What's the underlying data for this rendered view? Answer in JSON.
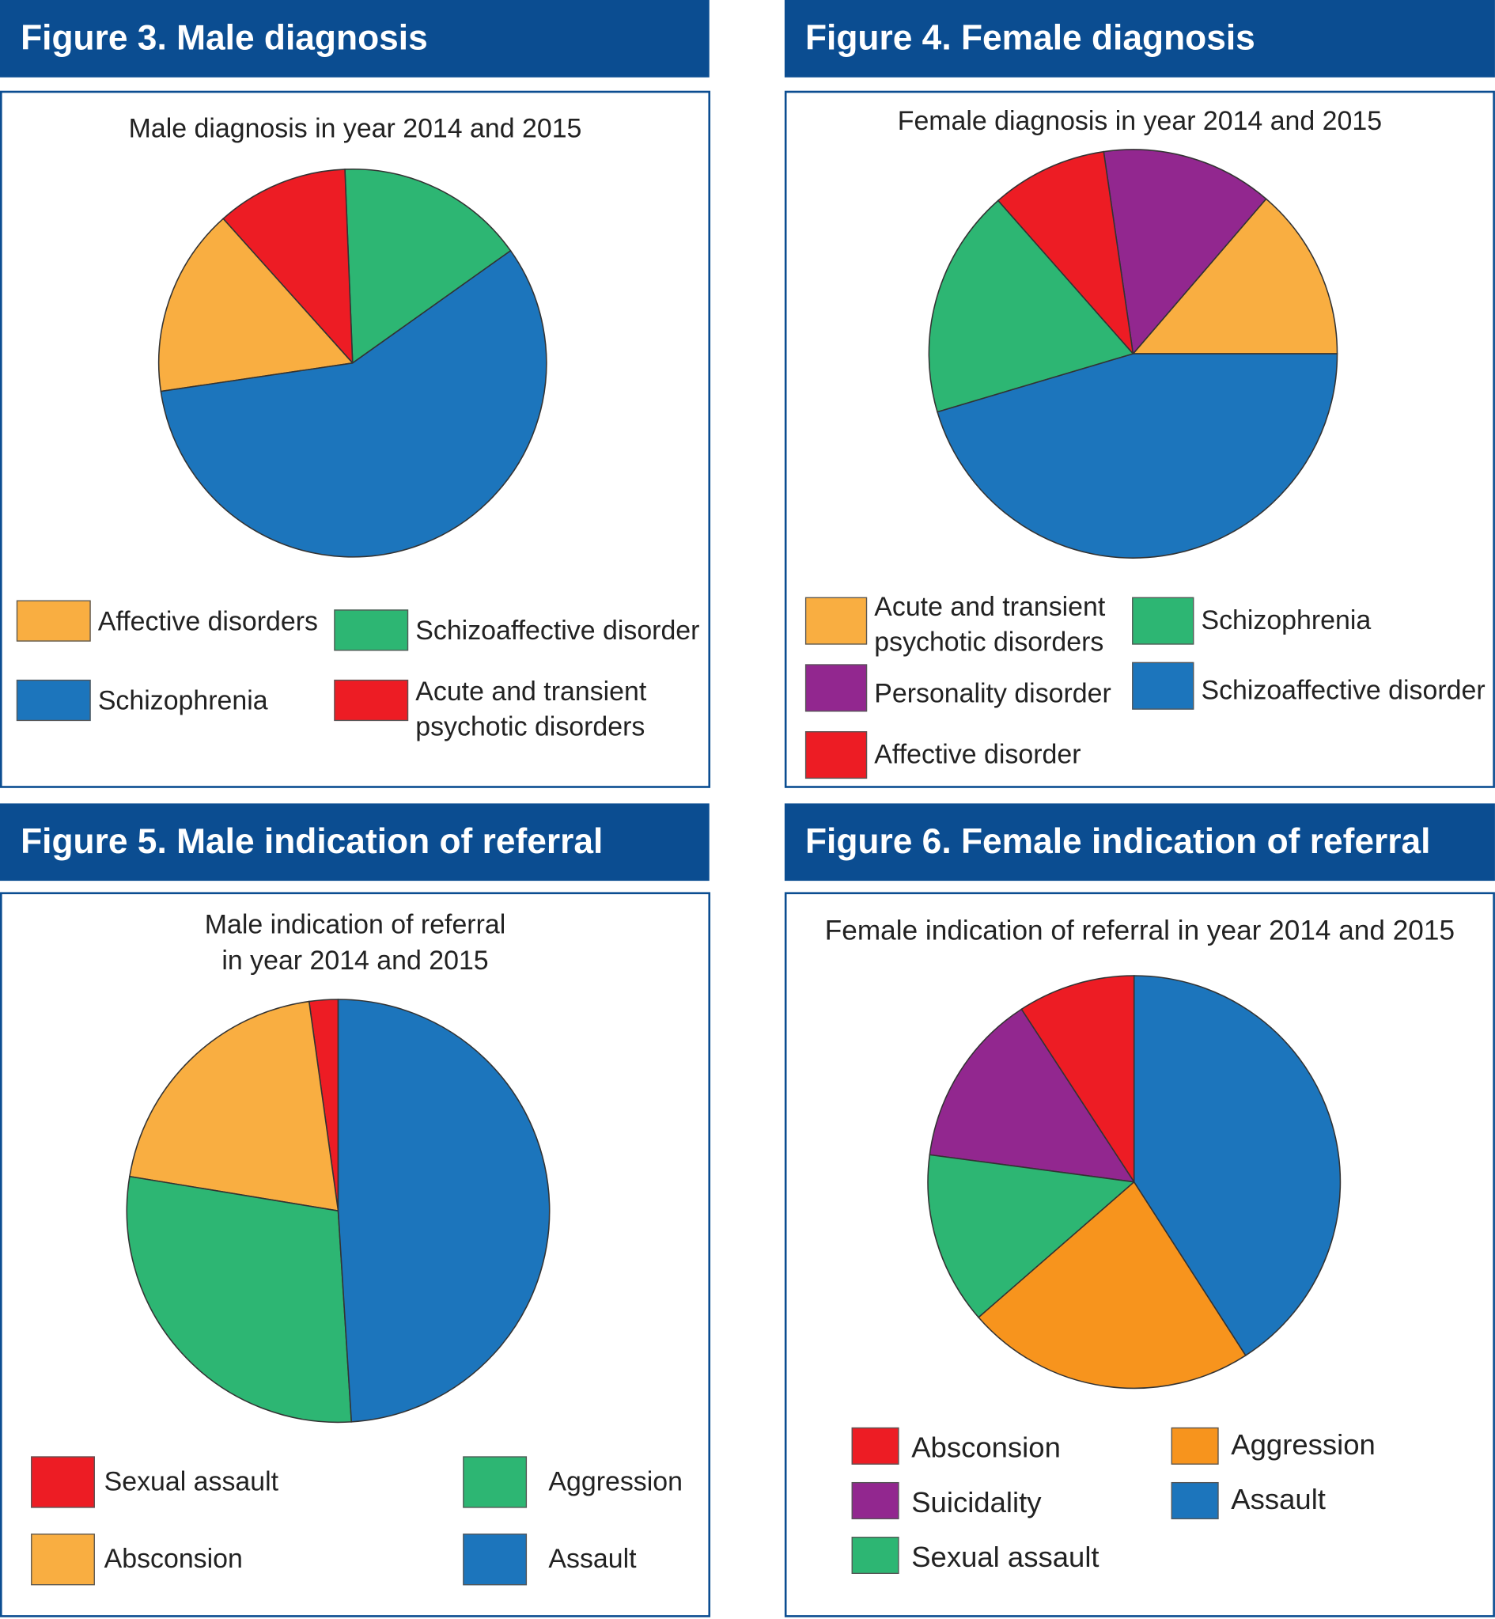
{
  "colors": {
    "header": "#0b4d91",
    "orange": "#f9ae41",
    "green": "#2db673",
    "blue": "#1c75bc",
    "red": "#ed1c24",
    "purple": "#92278f",
    "dark_orange": "#f7941d"
  },
  "chart_data": [
    {
      "type": "pie",
      "header": "Figure 3. Male diagnosis",
      "title": "Male diagnosis in year 2014 and 2015",
      "unit": "percent (estimated)",
      "slices": [
        {
          "label": "Schizoaffective disorder",
          "value": 15.8,
          "color": "#2db673"
        },
        {
          "label": "Acute and transient psychotic disorders",
          "value": 11.0,
          "color": "#ed1c24"
        },
        {
          "label": "Affective disorders",
          "value": 15.7,
          "color": "#f9ae41"
        },
        {
          "label": "Schizophrenia",
          "value": 57.5,
          "color": "#1c75bc"
        }
      ],
      "legend": [
        "Affective disorders",
        "Schizoaffective disorder",
        "Schizophrenia",
        "Acute and transient",
        "psychotic disorders"
      ]
    },
    {
      "type": "pie",
      "header": "Figure 4. Female diagnosis",
      "title": "Female diagnosis in year 2014 and 2015",
      "unit": "percent (estimated)",
      "slices": [
        {
          "label": "Acute and transient psychotic disorders",
          "value": 13.7,
          "color": "#f9ae41"
        },
        {
          "label": "Personality disorder",
          "value": 13.6,
          "color": "#92278f"
        },
        {
          "label": "Affective disorder",
          "value": 9.2,
          "color": "#ed1c24"
        },
        {
          "label": "Schizophrenia",
          "value": 18.1,
          "color": "#2db673"
        },
        {
          "label": "Schizoaffective disorder",
          "value": 45.4,
          "color": "#1c75bc"
        }
      ],
      "legend": [
        "Acute and transient",
        "psychotic disorders",
        "Personality disorder",
        "Affective disorder",
        "Schizophrenia",
        "Schizoaffective disorder"
      ]
    },
    {
      "type": "pie",
      "header": "Figure 5. Male indication of referral",
      "title": [
        "Male indication of referral",
        "in year 2014 and 2015"
      ],
      "unit": "percent (estimated)",
      "slices": [
        {
          "label": "Sexual assault",
          "value": 2.2,
          "color": "#ed1c24"
        },
        {
          "label": "Absconsion",
          "value": 20.2,
          "color": "#f9ae41"
        },
        {
          "label": "Aggression",
          "value": 28.6,
          "color": "#2db673"
        },
        {
          "label": "Assault",
          "value": 49.0,
          "color": "#1c75bc"
        }
      ],
      "legend": [
        "Sexual assault",
        "Aggression",
        "Absconsion",
        "Assault"
      ]
    },
    {
      "type": "pie",
      "header": "Figure 6. Female indication of referral",
      "title": "Female indication of referral in year 2014 and 2015",
      "unit": "percent (estimated)",
      "slices": [
        {
          "label": "Absconsion",
          "value": 9.2,
          "color": "#ed1c24"
        },
        {
          "label": "Suicidality",
          "value": 13.7,
          "color": "#92278f"
        },
        {
          "label": "Sexual assault",
          "value": 13.5,
          "color": "#2db673"
        },
        {
          "label": "Aggression",
          "value": 22.7,
          "color": "#f7941d"
        },
        {
          "label": "Assault",
          "value": 40.9,
          "color": "#1c75bc"
        }
      ],
      "legend": [
        "Absconsion",
        "Suicidality",
        "Sexual assault",
        "Aggression",
        "Assault"
      ]
    }
  ]
}
